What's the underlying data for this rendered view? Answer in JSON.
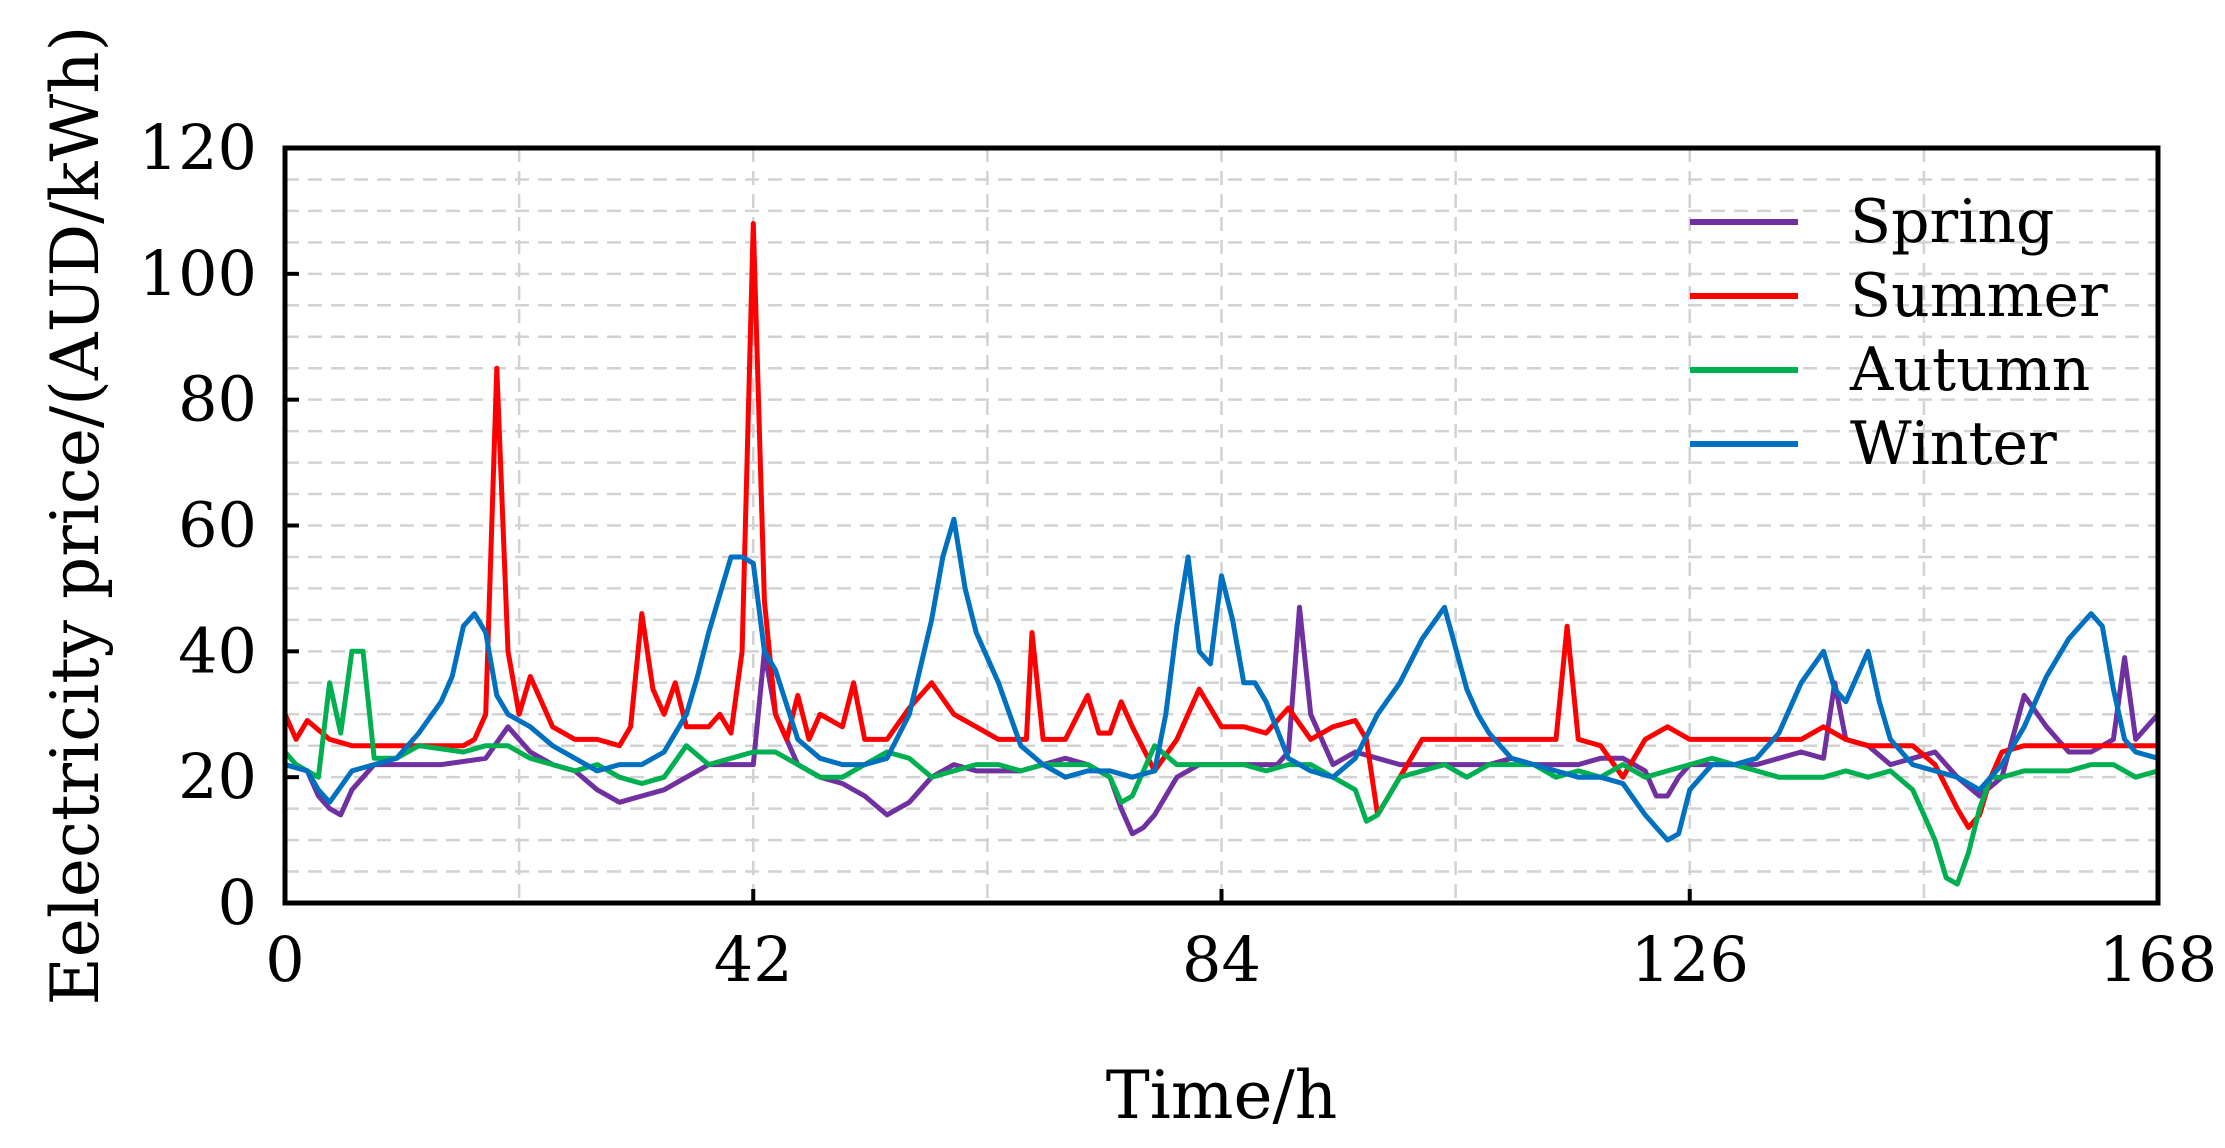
{
  "chart_data": {
    "type": "line",
    "xlabel": "Time/h",
    "ylabel": "Eelectricity price/(AUD/kWh)",
    "xlim": [
      0,
      168
    ],
    "ylim": [
      0,
      120
    ],
    "xticks": [
      "0",
      "42",
      "84",
      "126",
      "168"
    ],
    "yticks": [
      "0",
      "20",
      "40",
      "60",
      "80",
      "100",
      "120"
    ],
    "legend_position": "top-right",
    "series": [
      {
        "name": "Spring",
        "color": "#7030a0",
        "x": [
          0,
          2,
          3,
          4,
          5,
          6,
          8,
          10,
          14,
          18,
          20,
          22,
          24,
          26,
          28,
          30,
          32,
          34,
          36,
          38,
          40,
          41,
          42,
          43,
          44,
          46,
          48,
          50,
          52,
          54,
          56,
          58,
          60,
          62,
          64,
          66,
          68,
          70,
          72,
          74,
          75,
          76,
          77,
          78,
          80,
          82,
          84,
          86,
          88,
          89,
          90,
          91,
          92,
          94,
          96,
          98,
          100,
          102,
          104,
          106,
          108,
          110,
          112,
          114,
          116,
          118,
          120,
          122,
          123,
          124,
          125,
          126,
          128,
          130,
          132,
          134,
          136,
          138,
          139,
          140,
          142,
          144,
          146,
          148,
          150,
          152,
          154,
          156,
          158,
          160,
          162,
          164,
          165,
          166,
          168
        ],
        "values": [
          22,
          21,
          17,
          15,
          14,
          18,
          22,
          22,
          22,
          23,
          28,
          24,
          22,
          21,
          18,
          16,
          17,
          18,
          20,
          22,
          22,
          22,
          22,
          40,
          30,
          22,
          20,
          19,
          17,
          14,
          16,
          20,
          22,
          21,
          21,
          21,
          22,
          23,
          22,
          20,
          15,
          11,
          12,
          14,
          20,
          22,
          22,
          22,
          22,
          22,
          24,
          47,
          30,
          22,
          24,
          23,
          22,
          22,
          22,
          22,
          22,
          23,
          22,
          22,
          22,
          23,
          23,
          21,
          17,
          17,
          20,
          22,
          22,
          22,
          22,
          23,
          24,
          23,
          35,
          26,
          25,
          22,
          23,
          24,
          20,
          17,
          20,
          33,
          28,
          24,
          24,
          26,
          39,
          26,
          30
        ]
      },
      {
        "name": "Summer",
        "color": "#ff0000",
        "x": [
          0,
          1,
          2,
          4,
          6,
          8,
          10,
          12,
          14,
          16,
          17,
          18,
          19,
          20,
          21,
          22,
          24,
          26,
          28,
          30,
          31,
          32,
          33,
          34,
          35,
          36,
          38,
          39,
          40,
          41,
          42,
          43,
          44,
          45,
          46,
          47,
          48,
          50,
          51,
          52,
          54,
          56,
          58,
          60,
          62,
          64,
          66,
          66.5,
          67,
          68,
          70,
          72,
          73,
          74,
          75,
          76,
          78,
          80,
          82,
          84,
          86,
          88,
          90,
          92,
          94,
          96,
          97,
          98,
          100,
          102,
          104,
          106,
          108,
          110,
          112,
          114,
          115,
          116,
          118,
          120,
          122,
          124,
          126,
          128,
          130,
          132,
          134,
          136,
          138,
          140,
          142,
          144,
          146,
          148,
          150,
          151,
          152,
          153,
          154,
          156,
          158,
          160,
          162,
          164,
          166,
          168
        ],
        "values": [
          30,
          26,
          29,
          26,
          25,
          25,
          25,
          25,
          25,
          25,
          26,
          30,
          85,
          40,
          30,
          36,
          28,
          26,
          26,
          25,
          28,
          46,
          34,
          30,
          35,
          28,
          28,
          30,
          27,
          40,
          108,
          48,
          30,
          26,
          33,
          26,
          30,
          28,
          35,
          26,
          26,
          31,
          35,
          30,
          28,
          26,
          26,
          26,
          43,
          26,
          26,
          33,
          27,
          27,
          32,
          28,
          21,
          26,
          34,
          28,
          28,
          27,
          31,
          26,
          28,
          29,
          26,
          14,
          20,
          26,
          26,
          26,
          26,
          26,
          26,
          26,
          44,
          26,
          25,
          20,
          26,
          28,
          26,
          26,
          26,
          26,
          26,
          26,
          28,
          26,
          25,
          25,
          25,
          22,
          15,
          12,
          14,
          20,
          24,
          25,
          25,
          25,
          25,
          25,
          25,
          25
        ]
      },
      {
        "name": "Autumn",
        "color": "#00b050",
        "x": [
          0,
          1,
          2,
          3,
          4,
          5,
          6,
          7,
          8,
          10,
          12,
          16,
          18,
          20,
          22,
          24,
          26,
          28,
          30,
          32,
          34,
          36,
          38,
          40,
          42,
          44,
          46,
          48,
          50,
          52,
          54,
          56,
          58,
          60,
          62,
          64,
          66,
          68,
          70,
          72,
          74,
          75,
          76,
          78,
          80,
          82,
          84,
          86,
          88,
          90,
          92,
          94,
          96,
          97,
          98,
          100,
          102,
          104,
          106,
          108,
          110,
          112,
          114,
          116,
          118,
          120,
          122,
          124,
          126,
          128,
          130,
          132,
          134,
          136,
          138,
          140,
          142,
          144,
          146,
          147,
          148,
          149,
          150,
          151,
          152,
          153,
          154,
          156,
          158,
          160,
          162,
          164,
          166,
          168
        ],
        "values": [
          24,
          22,
          21,
          20,
          35,
          27,
          40,
          40,
          23,
          23,
          25,
          24,
          25,
          25,
          23,
          22,
          21,
          22,
          20,
          19,
          20,
          25,
          22,
          23,
          24,
          24,
          22,
          20,
          20,
          22,
          24,
          23,
          20,
          21,
          22,
          22,
          21,
          22,
          22,
          22,
          20,
          16,
          17,
          25,
          22,
          22,
          22,
          22,
          21,
          22,
          22,
          20,
          18,
          13,
          14,
          20,
          21,
          22,
          20,
          22,
          22,
          22,
          20,
          21,
          20,
          22,
          20,
          21,
          22,
          23,
          22,
          21,
          20,
          20,
          20,
          21,
          20,
          21,
          18,
          14,
          10,
          4,
          3,
          8,
          15,
          20,
          20,
          21,
          21,
          21,
          22,
          22,
          20,
          21
        ]
      },
      {
        "name": "Winter",
        "color": "#0070c0",
        "x": [
          0,
          2,
          3,
          4,
          6,
          8,
          10,
          12,
          14,
          15,
          16,
          17,
          18,
          19,
          20,
          22,
          24,
          26,
          28,
          30,
          32,
          34,
          36,
          37,
          38,
          39,
          40,
          41,
          42,
          43,
          44,
          46,
          48,
          50,
          52,
          54,
          56,
          58,
          59,
          60,
          61,
          62,
          64,
          66,
          68,
          70,
          72,
          74,
          76,
          78,
          79,
          80,
          81,
          82,
          83,
          84,
          85,
          86,
          87,
          88,
          90,
          92,
          94,
          96,
          98,
          100,
          102,
          104,
          106,
          107,
          108,
          110,
          112,
          114,
          116,
          118,
          120,
          122,
          124,
          125,
          126,
          128,
          130,
          132,
          134,
          136,
          138,
          139,
          140,
          142,
          143,
          144,
          146,
          148,
          150,
          152,
          154,
          156,
          158,
          160,
          162,
          163,
          164,
          165,
          166,
          168
        ],
        "values": [
          22,
          21,
          18,
          16,
          21,
          22,
          23,
          27,
          32,
          36,
          44,
          46,
          43,
          33,
          30,
          28,
          25,
          23,
          21,
          22,
          22,
          24,
          30,
          36,
          43,
          49,
          55,
          55,
          54,
          40,
          37,
          26,
          23,
          22,
          22,
          23,
          30,
          45,
          55,
          61,
          50,
          43,
          35,
          25,
          22,
          20,
          21,
          21,
          20,
          21,
          30,
          44,
          55,
          40,
          38,
          52,
          45,
          35,
          35,
          32,
          23,
          21,
          20,
          23,
          30,
          35,
          42,
          47,
          34,
          30,
          27,
          23,
          22,
          21,
          20,
          20,
          19,
          14,
          10,
          11,
          18,
          22,
          22,
          23,
          27,
          35,
          40,
          34,
          32,
          40,
          32,
          26,
          22,
          21,
          20,
          18,
          22,
          28,
          36,
          42,
          46,
          44,
          34,
          26,
          24,
          23
        ]
      }
    ]
  }
}
